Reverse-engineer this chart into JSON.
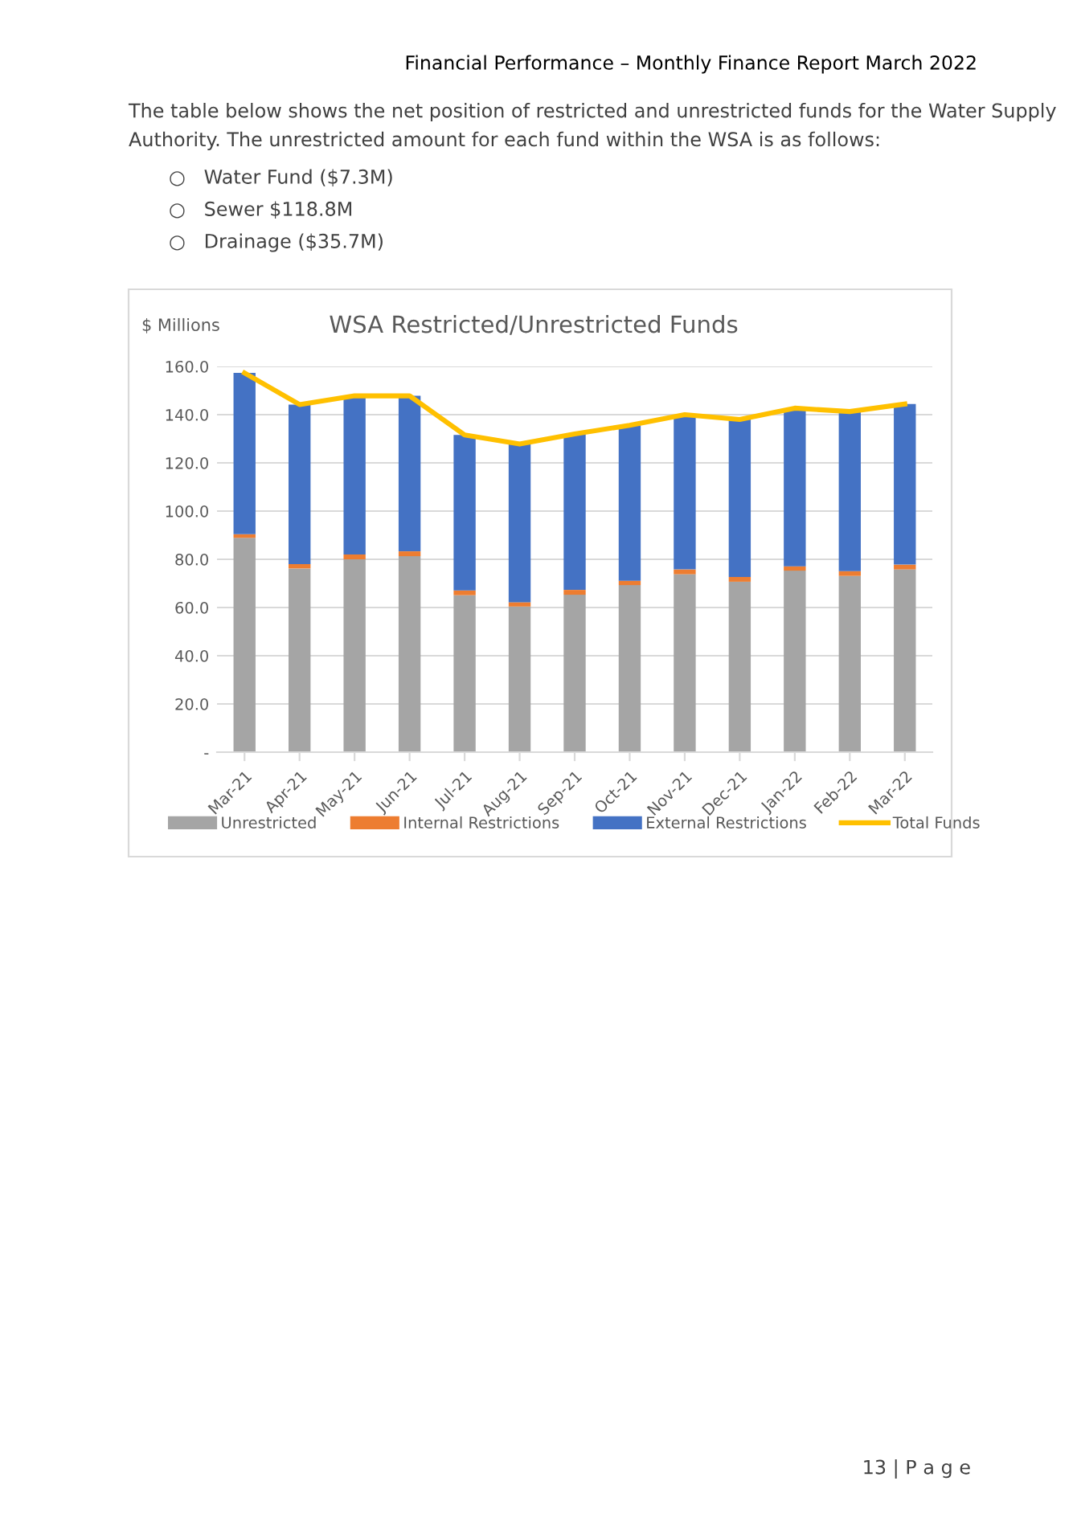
{
  "chart_data": {
    "type": "bar",
    "title": "WSA Restricted/Unrestricted Funds",
    "ylabel": "$ Millions",
    "annotations": [
      "Financial Performance – Monthly Finance Report March 2022",
      "The table below shows the net position of restricted and unrestricted funds for the Water Supply Authority. The unrestricted amount for each fund within the WSA is as follows:",
      "○   Water Fund ($7.3M)",
      "○   Sewer $118.8M",
      "○   Drainage ($35.7M)",
      "13 | P a g e"
    ],
    "categories": [
      "Mar-21",
      "Apr-21",
      "May-21",
      "Jun-21",
      "Jul-21",
      "Aug-21",
      "Sep-21",
      "Oct-21",
      "Nov-21",
      "Dec-21",
      "Jan-22",
      "Feb-22",
      "Mar-22"
    ],
    "stacked": true,
    "series": [
      {
        "name": "Unrestricted",
        "color": "#a5a5a5",
        "values": [
          88.9,
          76.2,
          80.0,
          81.3,
          65.1,
          60.4,
          65.3,
          69.3,
          73.8,
          70.7,
          75.3,
          73.1,
          75.8
        ]
      },
      {
        "name": "Internal Restrictions",
        "color": "#ed7d31",
        "values": [
          1.5,
          1.8,
          2.0,
          2.0,
          2.0,
          1.8,
          2.0,
          1.8,
          2.0,
          2.0,
          1.8,
          2.0,
          2.0
        ]
      },
      {
        "name": "External Restrictions",
        "color": "#4472c4",
        "values": [
          66.9,
          66.2,
          65.8,
          64.5,
          64.5,
          65.6,
          64.7,
          64.5,
          64.2,
          65.3,
          65.6,
          66.2,
          66.6
        ]
      },
      {
        "name": "Total Funds",
        "type": "line",
        "color": "#ffc000",
        "values": [
          157.3,
          144.2,
          147.8,
          147.8,
          131.6,
          127.8,
          132.0,
          135.6,
          140.0,
          138.0,
          142.7,
          141.3,
          144.4
        ]
      }
    ],
    "ylim": [
      0,
      160
    ],
    "yticks": [
      {
        "value": 0,
        "label": "-"
      },
      {
        "value": 20,
        "label": "20.0"
      },
      {
        "value": 40,
        "label": "40.0"
      },
      {
        "value": 60,
        "label": "60.0"
      },
      {
        "value": 80,
        "label": "80.0"
      },
      {
        "value": 100,
        "label": "100.0"
      },
      {
        "value": 120,
        "label": "120.0"
      },
      {
        "value": 140,
        "label": "140.0"
      },
      {
        "value": 160,
        "label": "160.0"
      }
    ],
    "grid": "y",
    "legend": "bottom",
    "marker": "none",
    "line_style": "solid"
  }
}
